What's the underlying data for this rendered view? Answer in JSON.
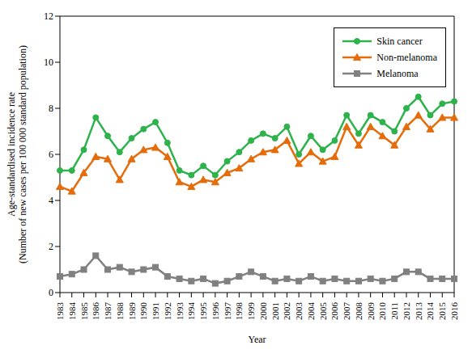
{
  "chart_data": {
    "type": "line",
    "ylabel": "Age-standardised incidence rate\n(Number of new cases per 100 000 standard population)",
    "xlabel": "Year",
    "categories": [
      "1983",
      "1984",
      "1985",
      "1986",
      "1987",
      "1988",
      "1989",
      "1990",
      "1991",
      "1992",
      "1993",
      "1994",
      "1995",
      "1996",
      "1997",
      "1998",
      "1999",
      "2000",
      "2001",
      "2002",
      "2003",
      "2004",
      "2005",
      "2006",
      "2007",
      "2008",
      "2009",
      "2010",
      "2011",
      "2012",
      "2013",
      "2014",
      "2015",
      "2016"
    ],
    "series": [
      {
        "name": "Skin cancer",
        "color": "#2eb24b",
        "marker": "circle",
        "values": [
          5.3,
          5.3,
          6.2,
          7.6,
          6.8,
          6.1,
          6.7,
          7.1,
          7.4,
          6.5,
          5.3,
          5.1,
          5.5,
          5.1,
          5.7,
          6.1,
          6.6,
          6.9,
          6.7,
          7.2,
          6.0,
          6.8,
          6.2,
          6.6,
          7.7,
          6.9,
          7.7,
          7.4,
          7.0,
          8.0,
          8.5,
          7.7,
          8.2,
          8.3
        ]
      },
      {
        "name": "Non-melanoma",
        "color": "#e46c0a",
        "marker": "triangle",
        "values": [
          4.6,
          4.4,
          5.2,
          5.9,
          5.8,
          4.9,
          5.8,
          6.2,
          6.3,
          5.9,
          4.8,
          4.6,
          4.9,
          4.8,
          5.2,
          5.4,
          5.8,
          6.1,
          6.2,
          6.6,
          5.6,
          6.1,
          5.7,
          5.9,
          7.2,
          6.4,
          7.2,
          6.8,
          6.4,
          7.2,
          7.7,
          7.1,
          7.6,
          7.6
        ]
      },
      {
        "name": "Melanoma",
        "color": "#808080",
        "marker": "square",
        "values": [
          0.7,
          0.8,
          1.0,
          1.6,
          1.0,
          1.1,
          0.9,
          1.0,
          1.1,
          0.7,
          0.6,
          0.5,
          0.6,
          0.4,
          0.5,
          0.7,
          0.9,
          0.7,
          0.5,
          0.6,
          0.5,
          0.7,
          0.5,
          0.6,
          0.5,
          0.5,
          0.6,
          0.5,
          0.6,
          0.9,
          0.9,
          0.6,
          0.6,
          0.6
        ]
      }
    ],
    "ylim": [
      0,
      12
    ],
    "yticks": [
      0,
      2,
      4,
      6,
      8,
      10,
      12
    ],
    "grid": false,
    "legend": "upper right"
  }
}
